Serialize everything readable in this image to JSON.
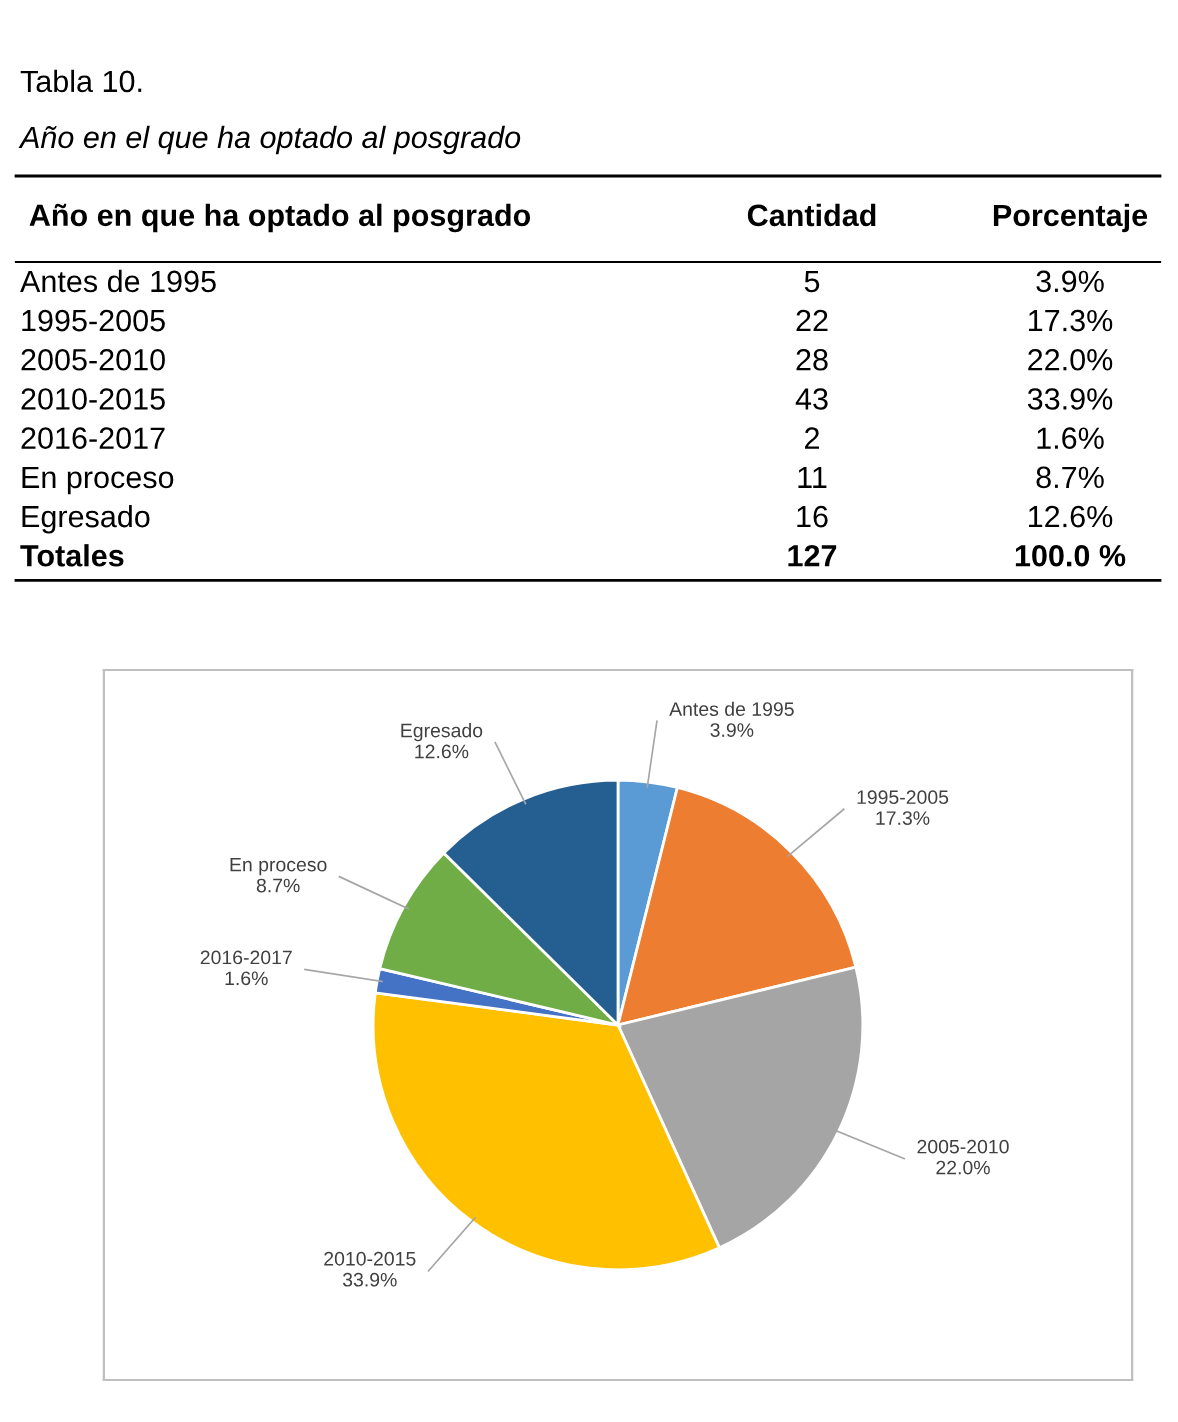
{
  "chart_data": {
    "type": "pie",
    "title": "Tabla 10.",
    "subtitle": "Año en el que ha optado al posgrado",
    "categories": [
      "Antes de 1995",
      "1995-2005",
      "2005-2010",
      "2010-2015",
      "2016-2017",
      "En proceso",
      "Egresado"
    ],
    "values": [
      3.9,
      17.3,
      22.0,
      33.9,
      1.6,
      8.7,
      12.6
    ],
    "value_labels": [
      "3.9%",
      "17.3%",
      "22.0%",
      "33.9%",
      "1.6%",
      "8.7%",
      "12.6%"
    ],
    "colors": [
      "#5b9bd5",
      "#ed7d31",
      "#a5a5a5",
      "#ffc000",
      "#4472c4",
      "#70ad47",
      "#255e91"
    ],
    "annotations": [
      "Año en que ha optado al posgrado",
      "Cantidad",
      "Porcentaje",
      "Totales",
      "127",
      "100.0 %",
      "5",
      "22",
      "28",
      "43",
      "2",
      "11",
      "16"
    ]
  }
}
